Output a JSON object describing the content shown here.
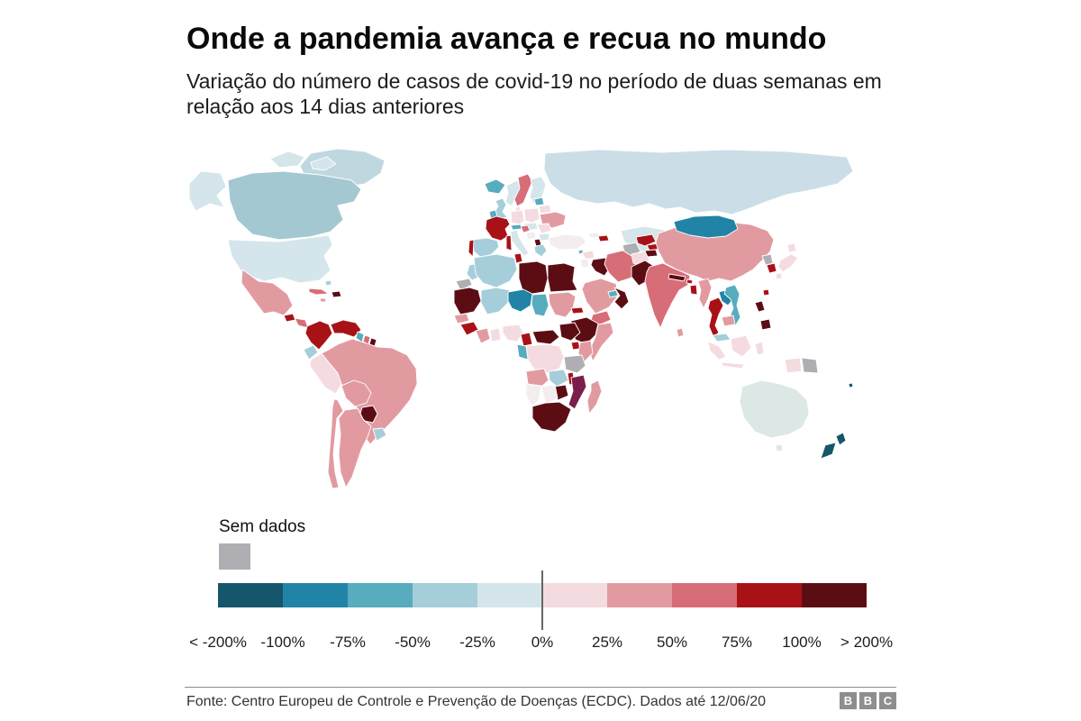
{
  "header": {
    "title": "Onde a pandemia avança e recua no mundo",
    "subtitle": "Variação do número de casos de covid-19 no período de duas semanas em relação aos 14 dias anteriores"
  },
  "legend": {
    "no_data_label": "Sem dados",
    "scale_labels": [
      "< -200%",
      "-100%",
      "-75%",
      "-50%",
      "-25%",
      "0%",
      "25%",
      "50%",
      "75%",
      "100%",
      "> 200%"
    ],
    "scale_keys": [
      "b1",
      "b2",
      "b3",
      "b4",
      "b5",
      "r6",
      "r7",
      "r8",
      "r9",
      "r10"
    ]
  },
  "footer": {
    "source": "Fonte: Centro Europeu de Controle e Prevenção de Doenças (ECDC). Dados até 12/06/20",
    "logo_letters": [
      "B",
      "B",
      "C"
    ]
  },
  "map": {
    "ocean": "#ffffff",
    "palette": {
      "b1": "#15566C",
      "b2": "#2184A6",
      "b3": "#57ACBD",
      "b4": "#A6CEDA",
      "b5": "#D4E6EB",
      "r6": "#F4DBDF",
      "r7": "#E29AA1",
      "r8": "#D76D77",
      "r9": "#A81217",
      "r10": "#5C0D14",
      "gray": "#AFAFB3",
      "purple": "#7C1E4C",
      "pale": "#F3EDEE",
      "canada": "#A3C8D2",
      "greenland": "#BFD8E0",
      "russia": "#CBDEE8",
      "australia": "#DCE8E5"
    },
    "regions": {
      "greenland": "greenland",
      "canadian-arctic-west": "b5",
      "canadian-arctic-east": "b5",
      "alaska": "b5",
      "canada": "canada",
      "usa": "b5",
      "mexico": "r7",
      "guatemala": "r9",
      "honduras-nicaragua": "r8",
      "costa-rica": "r6",
      "panama": "r10",
      "cuba": "r8",
      "hispaniola": "r10",
      "jamaica": "r7",
      "bahamas": "b4",
      "colombia": "r9",
      "venezuela": "r9",
      "guyana": "b3",
      "suriname": "r8",
      "french-guiana": "r10",
      "ecuador": "b4",
      "peru": "r6",
      "brazil": "r7",
      "bolivia": "r7",
      "paraguay": "r10",
      "uruguay": "b4",
      "argentina": "r7",
      "chile": "r7",
      "iceland": "b3",
      "norway": "b5",
      "sweden": "r8",
      "finland": "b5",
      "uk": "b4",
      "ireland": "b3",
      "denmark": "r6",
      "germany": "r6",
      "poland": "r6",
      "czech-hungary": "b5",
      "belarus": "r6",
      "baltics": "b3",
      "ukraine": "r7",
      "romania": "r6",
      "bulgaria": "b5",
      "croatia": "r8",
      "serbia-bosnia": "pale",
      "albania-macedonia": "r10",
      "greece": "b4",
      "france": "r9",
      "spain": "b4",
      "portugal": "r9",
      "italy": "b5",
      "corsica-sardinia": "r9",
      "austria-switzerland": "b3",
      "russia": "russia",
      "kazakhstan": "b5",
      "turkey": "pale",
      "cyprus": "b3",
      "georgia": "pale",
      "azerbaijan-armenia": "r9",
      "syria": "r6",
      "israel-jordan": "pale",
      "iraq": "r10",
      "iran": "r8",
      "saudi-arabia": "r7",
      "yemen": "r8",
      "oman": "r10",
      "uae-qatar": "b3",
      "turkmenistan": "gray",
      "uzbekistan": "r9",
      "kyrgyzstan": "r9",
      "tajikistan": "r10",
      "afghanistan": "r6",
      "pakistan": "r10",
      "india": "r8",
      "nepal": "r10",
      "bhutan": "r9",
      "bangladesh": "r9",
      "sri-lanka": "r7",
      "china": "r7",
      "mongolia": "b2",
      "myanmar": "r7",
      "thailand": "r9",
      "laos": "b2",
      "vietnam": "b3",
      "cambodia": "r7",
      "malaysia": "b4",
      "indonesia": "r6",
      "papua-new-guinea": "gray",
      "philippines": "r10",
      "taiwan": "r9",
      "south-korea": "r9",
      "north-korea": "gray",
      "japan": "r6",
      "morocco": "b4",
      "western-sahara": "gray",
      "algeria": "b4",
      "tunisia": "r9",
      "libya": "r10",
      "egypt": "r10",
      "mauritania": "r10",
      "mali": "b4",
      "niger": "b2",
      "chad": "b3",
      "sudan": "r7",
      "eritrea": "r9",
      "ethiopia": "r10",
      "somalia": "r7",
      "senegal": "r7",
      "guinea": "r9",
      "ivory-coast": "r7",
      "ghana": "r6",
      "nigeria": "r6",
      "cameroon": "r9",
      "central-african-republic": "r10",
      "south-sudan": "r10",
      "uganda": "r9",
      "kenya": "r7",
      "drc": "r6",
      "congo-gabon": "b3",
      "tanzania": "gray",
      "angola": "r7",
      "zambia": "b4",
      "malawi": "r9",
      "mozambique": "purple",
      "zimbabwe": "r10",
      "botswana": "pale",
      "namibia": "pale",
      "south-africa": "r10",
      "madagascar": "r7",
      "australia": "australia",
      "tasmania": "australia",
      "new-zealand-north": "b1",
      "new-zealand-south": "b1",
      "fiji": "b1"
    }
  }
}
